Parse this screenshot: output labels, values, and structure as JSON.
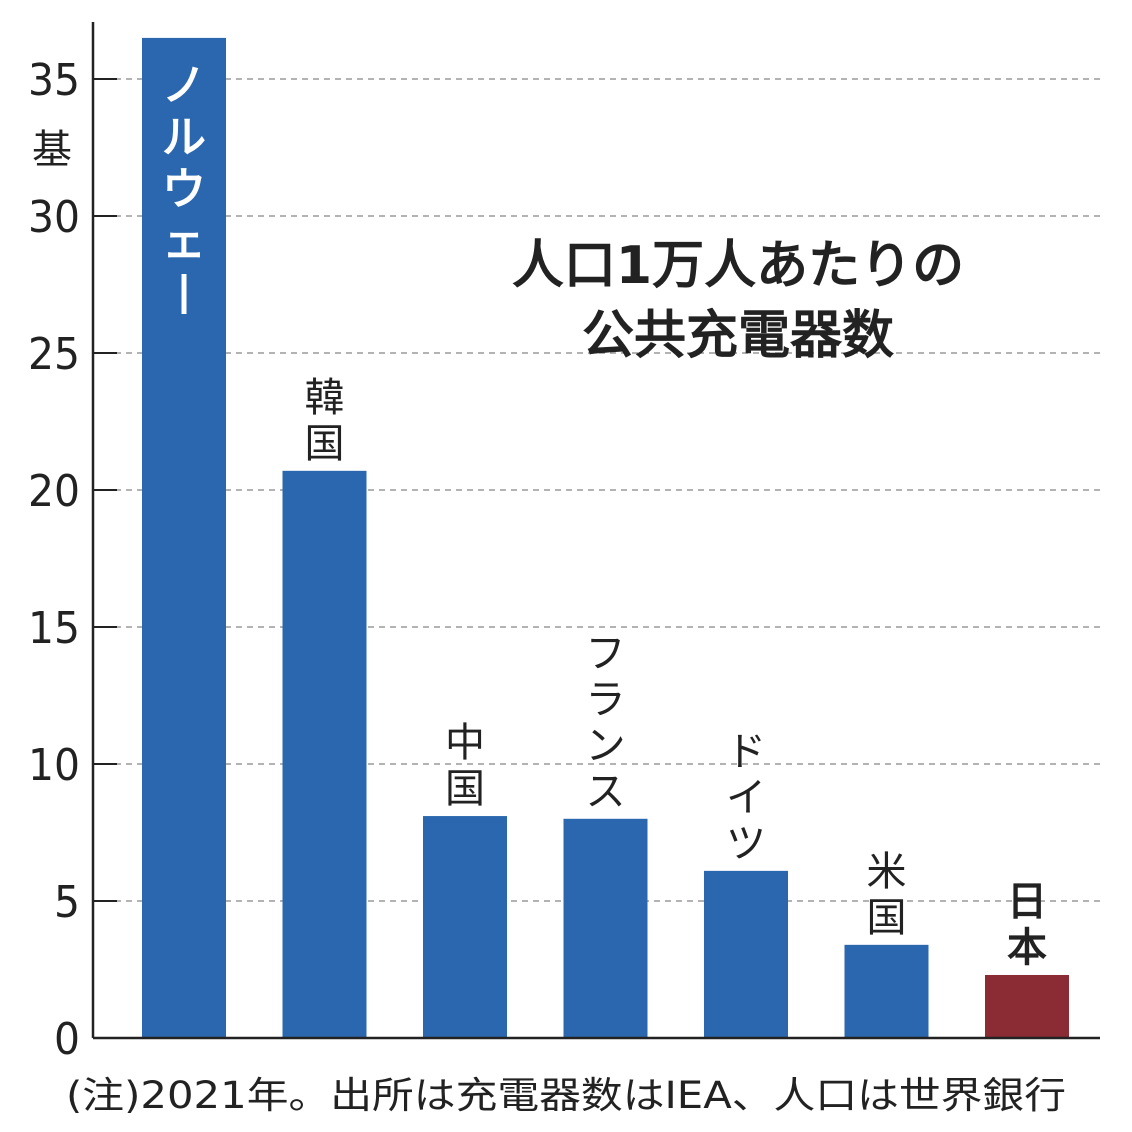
{
  "chart_data": {
    "type": "bar",
    "title": "人口1万人あたりの\n公共充電器数",
    "title_lines": [
      "人口1万人あたりの",
      "公共充電器数"
    ],
    "unit": "基",
    "ylim": [
      0,
      37
    ],
    "yticks": [
      0,
      5,
      10,
      15,
      20,
      25,
      30,
      35
    ],
    "grid": true,
    "categories": [
      "ノルウェー",
      "韓国",
      "中国",
      "フランス",
      "ドイツ",
      "米国",
      "日本"
    ],
    "values": [
      36.5,
      20.7,
      8.1,
      8.0,
      6.1,
      3.4,
      2.3
    ],
    "bar_colors": [
      "#2b67ae",
      "#2b67ae",
      "#2b67ae",
      "#2b67ae",
      "#2b67ae",
      "#2b67ae",
      "#8b2b33"
    ],
    "note": "(注)2021年。出所は充電器数はIEA、人口は世界銀行"
  }
}
